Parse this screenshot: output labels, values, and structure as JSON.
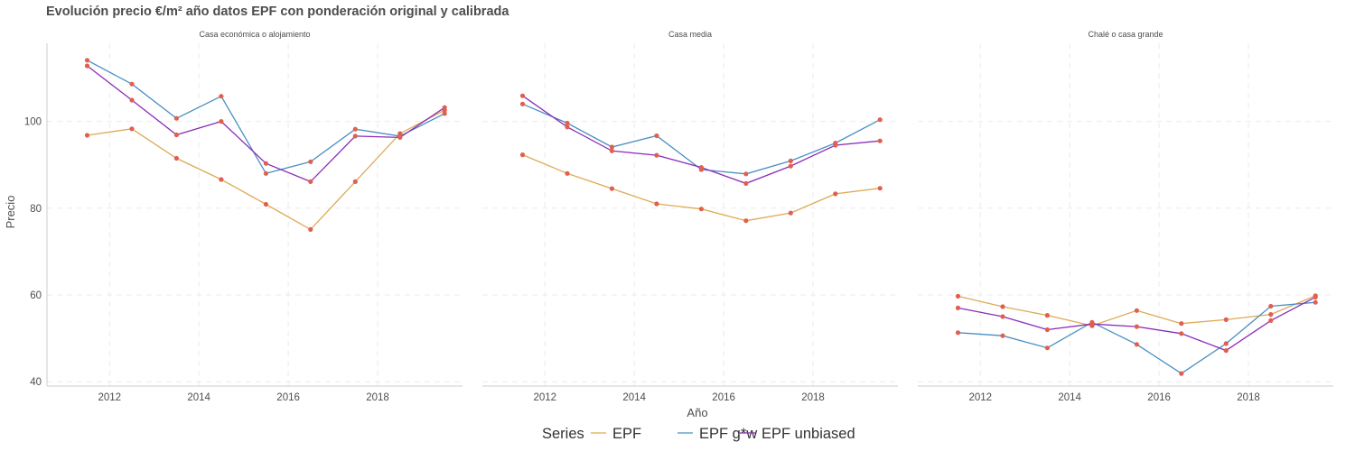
{
  "chart_data": {
    "type": "line",
    "title": "Evolución precio €/m² año datos EPF con ponderación original y calibrada",
    "xlabel": "Año",
    "ylabel": "Precio",
    "ylim": [
      39,
      118
    ],
    "xlim": [
      2010.6,
      2019.9
    ],
    "y_ticks": [
      40,
      60,
      80,
      100
    ],
    "x_ticks": [
      2012,
      2014,
      2016,
      2018
    ],
    "x": [
      2011.5,
      2012.5,
      2013.5,
      2014.5,
      2015.5,
      2016.5,
      2017.5,
      2018.5,
      2019.5
    ],
    "grid": true,
    "legend_position": "bottom",
    "legend_title": "Series",
    "point_color": "#e0604f",
    "series_meta": [
      {
        "name": "EPF",
        "color": "#ddaa55"
      },
      {
        "name": "EPF g*w",
        "color": "#4a8fc2"
      },
      {
        "name": "EPF unbiased",
        "color": "#8b2cb8"
      }
    ],
    "facets": [
      {
        "label": "Casa económica o alojamiento",
        "series": [
          {
            "name": "EPF",
            "values": [
              96.8,
              98.3,
              91.5,
              86.6,
              80.9,
              75.1,
              86.1,
              97.2,
              102.6
            ]
          },
          {
            "name": "EPF g*w",
            "values": [
              114.1,
              108.6,
              100.7,
              105.8,
              88.0,
              90.7,
              98.2,
              96.6,
              101.8
            ]
          },
          {
            "name": "EPF unbiased",
            "values": [
              112.8,
              104.9,
              96.9,
              100.0,
              90.3,
              86.1,
              96.6,
              96.3,
              103.2
            ]
          }
        ]
      },
      {
        "label": "Casa media",
        "series": [
          {
            "name": "EPF",
            "values": [
              92.3,
              88.0,
              84.5,
              81.0,
              79.8,
              77.1,
              78.9,
              83.3,
              84.6
            ]
          },
          {
            "name": "EPF g*w",
            "values": [
              104.0,
              99.6,
              94.1,
              96.7,
              88.9,
              87.9,
              90.9,
              95.0,
              100.4
            ]
          },
          {
            "name": "EPF unbiased",
            "values": [
              105.9,
              98.7,
              93.2,
              92.2,
              89.4,
              85.7,
              89.7,
              94.5,
              95.5
            ]
          }
        ]
      },
      {
        "label": "Chalé o casa grande",
        "series": [
          {
            "name": "EPF",
            "values": [
              59.7,
              57.3,
              55.3,
              52.9,
              56.4,
              53.4,
              54.3,
              55.5,
              59.8
            ]
          },
          {
            "name": "EPF g*w",
            "values": [
              51.3,
              50.6,
              47.8,
              53.7,
              48.6,
              41.9,
              48.8,
              57.4,
              58.3
            ]
          },
          {
            "name": "EPF unbiased",
            "values": [
              57.0,
              55.0,
              52.0,
              53.3,
              52.7,
              51.1,
              47.2,
              54.1,
              59.5
            ]
          }
        ]
      }
    ]
  }
}
